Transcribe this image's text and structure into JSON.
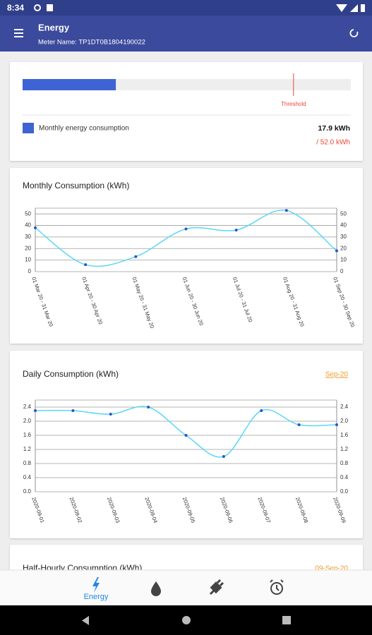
{
  "status_bar": {
    "time": "8:34"
  },
  "app_bar": {
    "title": "Energy",
    "subtitle": "Meter Name: TP1DT0B1804190022"
  },
  "usage_card": {
    "range": [
      0,
      63
    ],
    "usage": {
      "value": 17.9,
      "label": "17.9 kWh"
    },
    "threshold": {
      "value": 52.0,
      "label": "/ 52.0 kWh"
    },
    "threshold_text": "Threshold",
    "legend": "Monthly energy consumption",
    "bar_color": "#3e63d3",
    "threshold_color": "#f44336"
  },
  "monthly_chart": {
    "type": "line",
    "title": "Monthly Consumption (kWh)",
    "categories": [
      "01 Mar 20 - 31 Mar 20",
      "01 Apr 20 - 30 Apr 20",
      "01 May 20 - 31 May 20",
      "01 Jun 20 - 30 Jun 20",
      "01 Jul 20 - 31 Jul 20",
      "01 Aug 20 - 31 Aug 20",
      "01 Sep 20 - 30 Sep 20"
    ],
    "values": [
      38,
      6,
      13,
      37,
      36,
      53,
      18
    ],
    "color": "#5ad8f5",
    "point_color": "#2a55c8",
    "ylim": [
      0,
      55
    ],
    "yticks": [
      0,
      10,
      20,
      30,
      40,
      50
    ],
    "grid": true
  },
  "daily_chart": {
    "type": "line",
    "title": "Daily Consumption (kWh)",
    "period": "Sep-20",
    "categories": [
      "2020-09-01",
      "2020-09-02",
      "2020-09-03",
      "2020-09-04",
      "2020-09-05",
      "2020-09-06",
      "2020-09-07",
      "2020-09-08",
      "2020-09-09"
    ],
    "values": [
      2.3,
      2.3,
      2.2,
      2.4,
      1.6,
      1.0,
      2.3,
      1.9,
      1.9
    ],
    "color": "#5ad8f5",
    "point_color": "#2a55c8",
    "ylim": [
      0,
      2.6
    ],
    "yticks": [
      {
        "value": 0,
        "label": "0.0"
      },
      0.4,
      0.8,
      1.2,
      1.6,
      {
        "value": 2,
        "label": "2.0"
      },
      2.4
    ],
    "grid": true
  },
  "half_hourly_card": {
    "title": "Half-Hourly Consumption (kWh)",
    "period": "09-Sep-20"
  },
  "bottom_nav": {
    "active": "Energy"
  }
}
